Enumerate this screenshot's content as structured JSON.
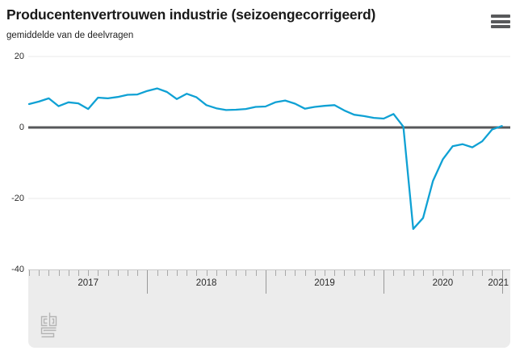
{
  "header": {
    "title": "Producentenvertrouwen industrie (seizoengecorrigeerd)",
    "subtitle": "gemiddelde van de deelvragen",
    "menu_icon": "hamburger-icon"
  },
  "chart_data": {
    "type": "line",
    "title": "Producentenvertrouwen industrie (seizoengecorrigeerd)",
    "subtitle": "gemiddelde van de deelvragen",
    "x_interval": "monthly",
    "x_start": "2017-01",
    "x_end": "2021-01",
    "x_year_labels": [
      "2017",
      "2018",
      "2019",
      "2020",
      "2021"
    ],
    "yticks": [
      20,
      0,
      -20,
      -40
    ],
    "ylim": [
      -40,
      20
    ],
    "grid": "horizontal",
    "zero_line": true,
    "legend": "none",
    "series": [
      {
        "name": "producentenvertrouwen",
        "color": "#0fa1d4",
        "values": [
          6.6,
          7.3,
          8.2,
          6.0,
          7.1,
          6.8,
          5.2,
          8.4,
          8.2,
          8.6,
          9.2,
          9.3,
          10.3,
          11.0,
          10.0,
          8.0,
          9.5,
          8.5,
          6.3,
          5.4,
          4.9,
          5.0,
          5.2,
          5.8,
          5.9,
          7.1,
          7.6,
          6.7,
          5.3,
          5.8,
          6.1,
          6.3,
          4.8,
          3.6,
          3.2,
          2.7,
          2.5,
          3.8,
          0.2,
          -28.6,
          -25.5,
          -15.1,
          -9.0,
          -5.3,
          -4.7,
          -5.6,
          -3.9,
          -0.6,
          0.4
        ]
      }
    ]
  },
  "colors": {
    "line": "#0fa1d4",
    "zero_line": "#57585a",
    "gridline": "#e8e8e8",
    "axis_panel_bg": "#ececec",
    "tick": "#a8a8a8",
    "year_separator": "#999999",
    "menu_icon": "#58595b",
    "logo": "#b4b4b4"
  },
  "footer": {
    "logo": "cbs-logo"
  }
}
